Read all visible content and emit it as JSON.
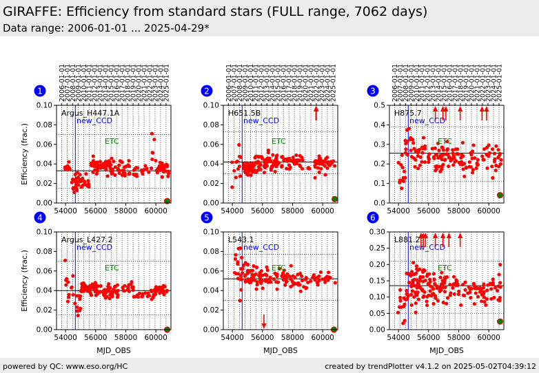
{
  "header": {
    "title": "GIRAFFE: Efficiency from standard stars (FULL range, 7062 days)",
    "subtitle": "Data range: 2006-01-01 ... 2025-04-29*"
  },
  "footer": {
    "left": "powered by QC: www.eso.org/HC",
    "right": "created by trendPlotter v4.1.2 on 2025-05-02T04:39:12"
  },
  "colors": {
    "data_point": "#ff0000",
    "new_ccd_line": "#0000ff",
    "etc_label": "#008000",
    "panel_badge": "#0000ff",
    "latest_point_fill": "#008000",
    "latest_point_edge": "#ff0000",
    "header_background": "#ececec"
  },
  "chart_data": [
    {
      "type": "scatter",
      "panel_number": "1",
      "star_label": "Argus_H447.1A",
      "marker_label": "new_CCD",
      "etc_label": "ETC",
      "ylabel": "Efficiency (frac.)",
      "xlabel": "",
      "xlim": [
        53400,
        61000
      ],
      "ylim": [
        0,
        0.1
      ],
      "yticks": [
        "0.00",
        "0.02",
        "0.04",
        "0.06",
        "0.08",
        "0.10"
      ],
      "xticks": [
        "54000",
        "56000",
        "58000",
        "60000"
      ],
      "top_date_ticks": [
        "2006-01-01",
        "2007-01-01",
        "2008-01-01",
        "2009-01-01",
        "2010-01-01",
        "2011-01-01",
        "2012-01-01",
        "2013-01-01",
        "2014-01-01",
        "2015-01-01",
        "2016-01-01",
        "2017-01-01",
        "2018-01-01",
        "2019-01-01",
        "2020-01-01",
        "2021-01-01",
        "2022-01-01",
        "2023-01-01",
        "2024-01-01",
        "2025-01-01"
      ],
      "new_ccd_mjd": 54650,
      "median_line": 0.033,
      "dotted_lines": [
        0.07,
        0.015
      ],
      "up_arrows_mjd": [],
      "down_arrows_mjd": [],
      "latest_point": [
        60750,
        0.002
      ],
      "segments": [
        {
          "x0": 53950,
          "x1": 54350,
          "n": 8,
          "mean": 0.036,
          "sd": 0.008
        },
        {
          "x0": 54380,
          "x1": 54600,
          "n": 5,
          "mean": 0.018,
          "sd": 0.006
        },
        {
          "x0": 54620,
          "x1": 55550,
          "n": 30,
          "mean": 0.023,
          "sd": 0.004
        },
        {
          "x0": 55700,
          "x1": 57000,
          "n": 60,
          "mean": 0.038,
          "sd": 0.003
        },
        {
          "x0": 57000,
          "x1": 58300,
          "n": 35,
          "mean": 0.036,
          "sd": 0.004
        },
        {
          "x0": 58300,
          "x1": 59700,
          "n": 18,
          "mean": 0.033,
          "sd": 0.003
        },
        {
          "x0": 59700,
          "x1": 60050,
          "n": 6,
          "mean": 0.045,
          "sd": 0.012
        },
        {
          "x0": 60050,
          "x1": 60850,
          "n": 35,
          "mean": 0.035,
          "sd": 0.004
        }
      ]
    },
    {
      "type": "scatter",
      "panel_number": "2",
      "star_label": "H651.5B",
      "marker_label": "new_CCD",
      "etc_label": "ETC",
      "ylabel": "",
      "xlabel": "",
      "xlim": [
        53400,
        61000
      ],
      "ylim": [
        0,
        0.1
      ],
      "yticks": [
        "0.00",
        "0.02",
        "0.04",
        "0.06",
        "0.08",
        "0.10"
      ],
      "xticks": [
        "54000",
        "56000",
        "58000",
        "60000"
      ],
      "top_date_ticks": [
        "2006-01-01",
        "2007-01-01",
        "2008-01-01",
        "2009-01-01",
        "2010-01-01",
        "2011-01-01",
        "2012-01-01",
        "2013-01-01",
        "2014-01-01",
        "2015-01-01",
        "2016-01-01",
        "2017-01-01",
        "2018-01-01",
        "2019-01-01",
        "2020-01-01",
        "2021-01-01",
        "2022-01-01",
        "2023-01-01",
        "2024-01-01",
        "2025-01-01"
      ],
      "new_ccd_mjd": 54650,
      "median_line": 0.042,
      "dotted_lines": [
        0.073,
        0.03
      ],
      "up_arrows_mjd": [
        59550,
        59580
      ],
      "down_arrows_mjd": [],
      "latest_point": [
        60800,
        0.004
      ],
      "segments": [
        {
          "x0": 53950,
          "x1": 54600,
          "n": 12,
          "mean": 0.04,
          "sd": 0.012
        },
        {
          "x0": 54650,
          "x1": 55500,
          "n": 45,
          "mean": 0.036,
          "sd": 0.004
        },
        {
          "x0": 55500,
          "x1": 57000,
          "n": 60,
          "mean": 0.042,
          "sd": 0.005
        },
        {
          "x0": 57000,
          "x1": 58500,
          "n": 30,
          "mean": 0.042,
          "sd": 0.005
        },
        {
          "x0": 58500,
          "x1": 59500,
          "n": 10,
          "mean": 0.04,
          "sd": 0.004
        },
        {
          "x0": 59500,
          "x1": 60850,
          "n": 35,
          "mean": 0.042,
          "sd": 0.004
        }
      ]
    },
    {
      "type": "scatter",
      "panel_number": "3",
      "star_label": "H875.7",
      "marker_label": "new_CCD",
      "etc_label": "ETC",
      "ylabel": "",
      "xlabel": "",
      "xlim": [
        53400,
        61000
      ],
      "ylim": [
        0,
        0.5
      ],
      "yticks": [
        "0.0",
        "0.1",
        "0.2",
        "0.3",
        "0.4",
        "0.5"
      ],
      "xticks": [
        "54000",
        "56000",
        "58000",
        "60000"
      ],
      "top_date_ticks": [
        "2006-01-01",
        "2007-01-01",
        "2008-01-01",
        "2009-01-01",
        "2010-01-01",
        "2011-01-01",
        "2012-01-01",
        "2013-01-01",
        "2014-01-01",
        "2015-01-01",
        "2016-01-01",
        "2017-01-01",
        "2018-01-01",
        "2019-01-01",
        "2020-01-01",
        "2021-01-01",
        "2022-01-01",
        "2023-01-01",
        "2024-01-01",
        "2025-01-01"
      ],
      "new_ccd_mjd": 54650,
      "median_line": 0.255,
      "dotted_lines": [
        0.39,
        0.11
      ],
      "up_arrows_mjd": [
        56450,
        56950,
        57150,
        58100,
        59550,
        59850
      ],
      "down_arrows_mjd": [],
      "latest_point": [
        60750,
        0.04
      ],
      "segments": [
        {
          "x0": 53950,
          "x1": 54450,
          "n": 12,
          "mean": 0.14,
          "sd": 0.05
        },
        {
          "x0": 54450,
          "x1": 55000,
          "n": 15,
          "mean": 0.32,
          "sd": 0.05
        },
        {
          "x0": 55000,
          "x1": 56000,
          "n": 25,
          "mean": 0.26,
          "sd": 0.04
        },
        {
          "x0": 56000,
          "x1": 58500,
          "n": 70,
          "mean": 0.23,
          "sd": 0.04
        },
        {
          "x0": 58500,
          "x1": 60850,
          "n": 45,
          "mean": 0.22,
          "sd": 0.04
        }
      ]
    },
    {
      "type": "scatter",
      "panel_number": "4",
      "star_label": "Argus_L427.2",
      "marker_label": "new_CCD",
      "etc_label": "ETC",
      "ylabel": "Efficiency (frac.)",
      "xlabel": "MJD_OBS",
      "xlim": [
        53400,
        61000
      ],
      "ylim": [
        0,
        0.1
      ],
      "yticks": [
        "0.00",
        "0.02",
        "0.04",
        "0.06",
        "0.08",
        "0.10"
      ],
      "xticks": [
        "54000",
        "56000",
        "58000",
        "60000"
      ],
      "top_date_ticks": [],
      "new_ccd_mjd": 54650,
      "median_line": 0.04,
      "dotted_lines": [
        0.07,
        0.015
      ],
      "up_arrows_mjd": [],
      "down_arrows_mjd": [],
      "latest_point": [
        60750,
        0.0
      ],
      "segments": [
        {
          "x0": 53950,
          "x1": 54600,
          "n": 12,
          "mean": 0.045,
          "sd": 0.01
        },
        {
          "x0": 54620,
          "x1": 55000,
          "n": 10,
          "mean": 0.025,
          "sd": 0.01
        },
        {
          "x0": 55000,
          "x1": 56000,
          "n": 40,
          "mean": 0.043,
          "sd": 0.003
        },
        {
          "x0": 56000,
          "x1": 58500,
          "n": 60,
          "mean": 0.04,
          "sd": 0.004
        },
        {
          "x0": 58500,
          "x1": 59800,
          "n": 15,
          "mean": 0.035,
          "sd": 0.003
        },
        {
          "x0": 59800,
          "x1": 60850,
          "n": 30,
          "mean": 0.04,
          "sd": 0.003
        }
      ]
    },
    {
      "type": "scatter",
      "panel_number": "5",
      "star_label": "L543.1",
      "marker_label": "new_CCD",
      "etc_label": "ETC",
      "ylabel": "",
      "xlabel": "MJD_OBS",
      "xlim": [
        53400,
        61000
      ],
      "ylim": [
        0,
        0.1
      ],
      "yticks": [
        "0.00",
        "0.02",
        "0.04",
        "0.06",
        "0.08",
        "0.10"
      ],
      "xticks": [
        "54000",
        "56000",
        "58000",
        "60000"
      ],
      "top_date_ticks": [],
      "new_ccd_mjd": 54650,
      "median_line": 0.052,
      "dotted_lines": [
        0.077,
        0.03
      ],
      "up_arrows_mjd": [],
      "down_arrows_mjd": [
        56100
      ],
      "latest_point": [
        60750,
        0.0
      ],
      "segments": [
        {
          "x0": 54100,
          "x1": 54700,
          "n": 20,
          "mean": 0.063,
          "sd": 0.01
        },
        {
          "x0": 54700,
          "x1": 56200,
          "n": 50,
          "mean": 0.055,
          "sd": 0.006
        },
        {
          "x0": 56200,
          "x1": 58000,
          "n": 40,
          "mean": 0.053,
          "sd": 0.004
        },
        {
          "x0": 58000,
          "x1": 59600,
          "n": 25,
          "mean": 0.05,
          "sd": 0.004
        },
        {
          "x0": 59600,
          "x1": 60850,
          "n": 20,
          "mean": 0.053,
          "sd": 0.006
        }
      ]
    },
    {
      "type": "scatter",
      "panel_number": "6",
      "star_label": "L881.2",
      "marker_label": "new_CCD",
      "etc_label": "ETC",
      "ylabel": "",
      "xlabel": "MJD_OBS",
      "xlim": [
        53400,
        61000
      ],
      "ylim": [
        0,
        0.3
      ],
      "yticks": [
        "0.00",
        "0.05",
        "0.10",
        "0.15",
        "0.20",
        "0.25",
        "0.30"
      ],
      "xticks": [
        "54000",
        "56000",
        "58000",
        "60000"
      ],
      "top_date_ticks": [],
      "new_ccd_mjd": 54650,
      "median_line": 0.135,
      "dotted_lines": [
        0.21,
        0.05
      ],
      "up_arrows_mjd": [
        55500,
        55650,
        55800,
        56450,
        56950,
        57350,
        58100
      ],
      "down_arrows_mjd": [],
      "latest_point": [
        60750,
        0.025
      ],
      "segments": [
        {
          "x0": 53950,
          "x1": 54500,
          "n": 12,
          "mean": 0.075,
          "sd": 0.02
        },
        {
          "x0": 54500,
          "x1": 56000,
          "n": 70,
          "mean": 0.14,
          "sd": 0.03
        },
        {
          "x0": 56000,
          "x1": 58000,
          "n": 60,
          "mean": 0.13,
          "sd": 0.025
        },
        {
          "x0": 58000,
          "x1": 59500,
          "n": 25,
          "mean": 0.12,
          "sd": 0.02
        },
        {
          "x0": 59500,
          "x1": 60850,
          "n": 30,
          "mean": 0.12,
          "sd": 0.025
        }
      ]
    }
  ]
}
